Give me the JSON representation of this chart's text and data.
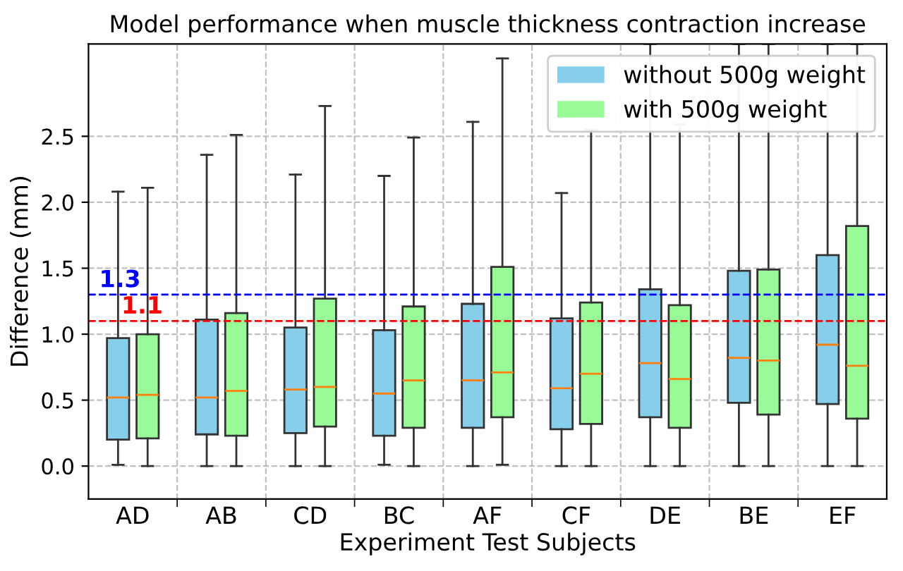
{
  "chart_data": {
    "type": "box",
    "title": "Model performance when muscle thickness contraction increase",
    "xlabel": "Experiment Test Subjects",
    "ylabel": "Difference (mm)",
    "categories": [
      "AD",
      "AB",
      "CD",
      "BC",
      "AF",
      "CF",
      "DE",
      "BE",
      "EF"
    ],
    "series": [
      {
        "name": "without 500g weight",
        "color": "#87ceeb",
        "boxes": [
          {
            "low": 0.01,
            "q1": 0.2,
            "median": 0.52,
            "q3": 0.97,
            "high": 2.08
          },
          {
            "low": 0.0,
            "q1": 0.24,
            "median": 0.52,
            "q3": 1.11,
            "high": 2.36
          },
          {
            "low": 0.0,
            "q1": 0.25,
            "median": 0.58,
            "q3": 1.05,
            "high": 2.21
          },
          {
            "low": 0.01,
            "q1": 0.23,
            "median": 0.55,
            "q3": 1.03,
            "high": 2.2
          },
          {
            "low": 0.0,
            "q1": 0.29,
            "median": 0.65,
            "q3": 1.23,
            "high": 2.61
          },
          {
            "low": 0.0,
            "q1": 0.28,
            "median": 0.59,
            "q3": 1.12,
            "high": 2.07
          },
          {
            "low": 0.0,
            "q1": 0.37,
            "median": 0.78,
            "q3": 1.34,
            "high": 3.2
          },
          {
            "low": 0.0,
            "q1": 0.48,
            "median": 0.82,
            "q3": 1.48,
            "high": 3.2
          },
          {
            "low": 0.0,
            "q1": 0.47,
            "median": 0.92,
            "q3": 1.6,
            "high": 3.2
          }
        ]
      },
      {
        "name": "with 500g weight",
        "color": "#98fb98",
        "boxes": [
          {
            "low": 0.0,
            "q1": 0.21,
            "median": 0.54,
            "q3": 1.0,
            "high": 2.11
          },
          {
            "low": 0.0,
            "q1": 0.23,
            "median": 0.57,
            "q3": 1.16,
            "high": 2.51
          },
          {
            "low": 0.0,
            "q1": 0.3,
            "median": 0.6,
            "q3": 1.27,
            "high": 2.73
          },
          {
            "low": 0.0,
            "q1": 0.29,
            "median": 0.65,
            "q3": 1.21,
            "high": 2.49
          },
          {
            "low": 0.01,
            "q1": 0.37,
            "median": 0.71,
            "q3": 1.51,
            "high": 3.09
          },
          {
            "low": 0.0,
            "q1": 0.32,
            "median": 0.7,
            "q3": 1.24,
            "high": 2.55
          },
          {
            "low": 0.0,
            "q1": 0.29,
            "median": 0.66,
            "q3": 1.22,
            "high": 2.59
          },
          {
            "low": 0.0,
            "q1": 0.39,
            "median": 0.8,
            "q3": 1.49,
            "high": 3.2
          },
          {
            "low": 0.0,
            "q1": 0.36,
            "median": 0.76,
            "q3": 1.82,
            "high": 3.2
          }
        ]
      }
    ],
    "ref_lines": [
      {
        "axis": "y",
        "value": 1.3,
        "label": "1.3",
        "color": "#0000ff",
        "line_style": "dashed"
      },
      {
        "axis": "y",
        "value": 1.1,
        "label": "1.1",
        "color": "#ff0000",
        "line_style": "dashed"
      }
    ],
    "ylim": [
      -0.25,
      3.2
    ],
    "yticks": [
      {
        "value": 0,
        "label": "0.0"
      },
      {
        "value": 0.5,
        "label": "0.5"
      },
      {
        "value": 1,
        "label": "1.0"
      },
      {
        "value": 1.5,
        "label": "1.5"
      },
      {
        "value": 2,
        "label": "2.0"
      },
      {
        "value": 2.5,
        "label": "2.5"
      }
    ],
    "grid": true,
    "legend": "top right"
  }
}
